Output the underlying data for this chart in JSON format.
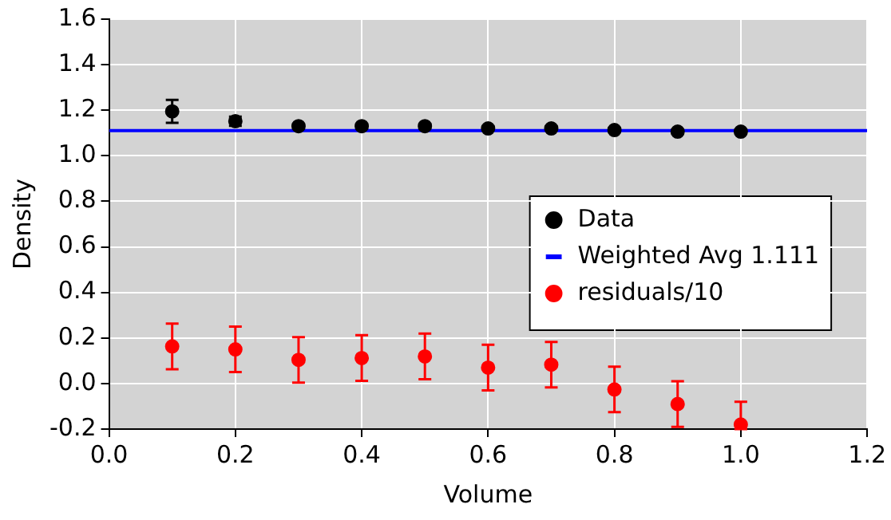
{
  "chart_data": {
    "type": "scatter",
    "xlabel": "Volume",
    "ylabel": "Density",
    "xlim": [
      0,
      1.2
    ],
    "xticks": [
      {
        "value": 0,
        "label": "0.0"
      },
      0.2,
      0.4,
      0.6,
      0.8,
      {
        "value": 1,
        "label": "1.0"
      },
      1.2
    ],
    "ylim": [
      -0.2,
      1.6
    ],
    "yticks": [
      -0.2,
      {
        "value": 0,
        "label": "0.0"
      },
      0.2,
      0.4,
      0.6,
      0.8,
      {
        "value": 1,
        "label": "1.0"
      },
      1.2,
      1.4,
      1.6
    ],
    "grid": true,
    "legend": "right",
    "marker": "circle",
    "series": [
      {
        "name": "Data",
        "type": "scatter",
        "color": "#000000",
        "x": [
          0.1,
          0.2,
          0.3,
          0.4,
          0.5,
          0.6,
          0.7,
          0.8,
          0.9,
          1.0
        ],
        "values": [
          1.195,
          1.152,
          1.13,
          1.13,
          1.13,
          1.12,
          1.12,
          1.113,
          1.106,
          1.106
        ],
        "errors": [
          0.05,
          0.02,
          0.01,
          0.01,
          0.01,
          0.01,
          0.01,
          0.01,
          0.01,
          0.01
        ]
      },
      {
        "name": "Weighted Avg 1.111",
        "type": "line",
        "color": "#0000ff",
        "marker": "none",
        "x": [
          0,
          1.2
        ],
        "values": [
          1.111,
          1.111
        ]
      },
      {
        "name": "residuals/10",
        "type": "scatter",
        "color": "#ff0000",
        "x": [
          0.1,
          0.2,
          0.3,
          0.4,
          0.5,
          0.6,
          0.7,
          0.8,
          0.9,
          1.0
        ],
        "values": [
          0.163,
          0.15,
          0.104,
          0.112,
          0.119,
          0.07,
          0.083,
          -0.026,
          -0.09,
          -0.18
        ],
        "errors": [
          0.1,
          0.1,
          0.1,
          0.1,
          0.1,
          0.1,
          0.1,
          0.1,
          0.1,
          [
            -0.2,
            -0.08
          ]
        ]
      }
    ]
  }
}
